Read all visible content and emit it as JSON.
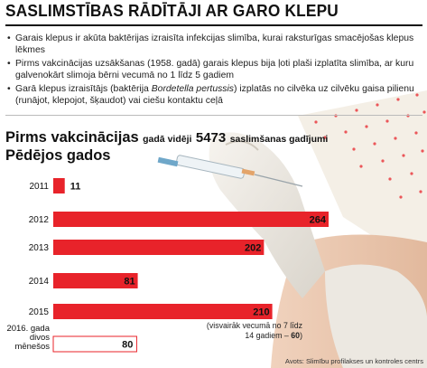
{
  "header": {
    "title": "SASLIMSTĪBAS RĀDĪTĀJI AR GARO KLEPU"
  },
  "bullets": [
    "Garais klepus ir akūta baktērijas izraisīta infekcijas slimība, kurai raksturīgas smacējošas klepus lēkmes",
    "Pirms vakcinācijas uzsākšanas (1958. gadā) garais klepus bija ļoti plaši izplatīta slimība, ar kuru galvenokārt slimoja bērni vecumā no 1 līdz 5 gadiem",
    "Garā klepus izraisītājs (baktērija Bordetella pertussis) izplatās no cilvēka uz cilvēku gaisa pilienu (runājot, klepojot, šķaudot) vai ciešu kontaktu ceļā"
  ],
  "chart_heading": {
    "part1": "Pirms vakcinācijas",
    "part2": "gadā vidēji",
    "number": "5473",
    "part3": "saslimšanas gadījumi",
    "subtitle": "Pēdējos gados"
  },
  "note": {
    "text": "(visvairāk vecumā no 7 līdz 14 gadiem –",
    "value": "60",
    "close": ")"
  },
  "source": "Avots: Slimību profilakses un kontroles centrs",
  "colors": {
    "bar": "#e8232a",
    "last_bar": "#ffffff",
    "label_text": "#111111"
  },
  "chart_data": {
    "type": "bar",
    "orientation": "horizontal",
    "title": "Pēdējos gados",
    "categories": [
      "2011",
      "2012",
      "2013",
      "2014",
      "2015",
      "2016. gada divos mēnešos"
    ],
    "values": [
      11,
      264,
      202,
      81,
      210,
      80
    ],
    "xlim": [
      0,
      300
    ],
    "data_labels": [
      "11",
      "264",
      "202",
      "81",
      "210",
      "80"
    ]
  }
}
